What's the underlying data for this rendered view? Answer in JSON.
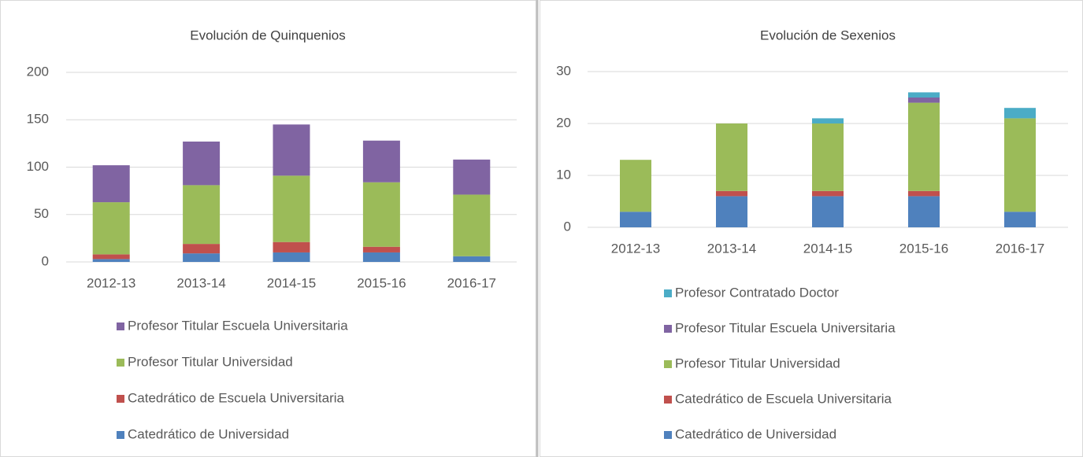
{
  "chart_data": [
    {
      "type": "bar",
      "stacked": true,
      "title": "Evolución de Quinquenios",
      "categories": [
        "2012-13",
        "2013-14",
        "2014-15",
        "2015-16",
        "2016-17"
      ],
      "series": [
        {
          "name": "Catedrático de Universidad",
          "color": "#4f81bd",
          "values": [
            3,
            9,
            10,
            10,
            6
          ]
        },
        {
          "name": "Catedrático de Escuela Universitaria",
          "color": "#c0504d",
          "values": [
            5,
            10,
            11,
            6,
            0
          ]
        },
        {
          "name": "Profesor Titular Universidad",
          "color": "#9bbb59",
          "values": [
            55,
            62,
            70,
            68,
            65
          ]
        },
        {
          "name": "Profesor Titular Escuela Universitaria",
          "color": "#8064a2",
          "values": [
            39,
            46,
            54,
            44,
            37
          ]
        }
      ],
      "ylim": [
        0,
        200
      ],
      "yticks": [
        0,
        50,
        100,
        150,
        200
      ],
      "grid": true
    },
    {
      "type": "bar",
      "stacked": true,
      "title": "Evolución de Sexenios",
      "categories": [
        "2012-13",
        "2013-14",
        "2014-15",
        "2015-16",
        "2016-17"
      ],
      "series": [
        {
          "name": "Catedrático de Universidad",
          "color": "#4f81bd",
          "values": [
            3,
            6,
            6,
            6,
            3
          ]
        },
        {
          "name": "Catedrático de Escuela Universitaria",
          "color": "#c0504d",
          "values": [
            0,
            1,
            1,
            1,
            0
          ]
        },
        {
          "name": "Profesor Titular Universidad",
          "color": "#9bbb59",
          "values": [
            10,
            13,
            13,
            17,
            18
          ]
        },
        {
          "name": "Profesor Titular Escuela Universitaria",
          "color": "#8064a2",
          "values": [
            0,
            0,
            0,
            1,
            0
          ]
        },
        {
          "name": "Profesor Contratado Doctor",
          "color": "#4bacc6",
          "values": [
            0,
            0,
            1,
            1,
            2
          ]
        }
      ],
      "ylim": [
        0,
        30
      ],
      "yticks": [
        0,
        10,
        20,
        30
      ],
      "grid": true
    }
  ]
}
